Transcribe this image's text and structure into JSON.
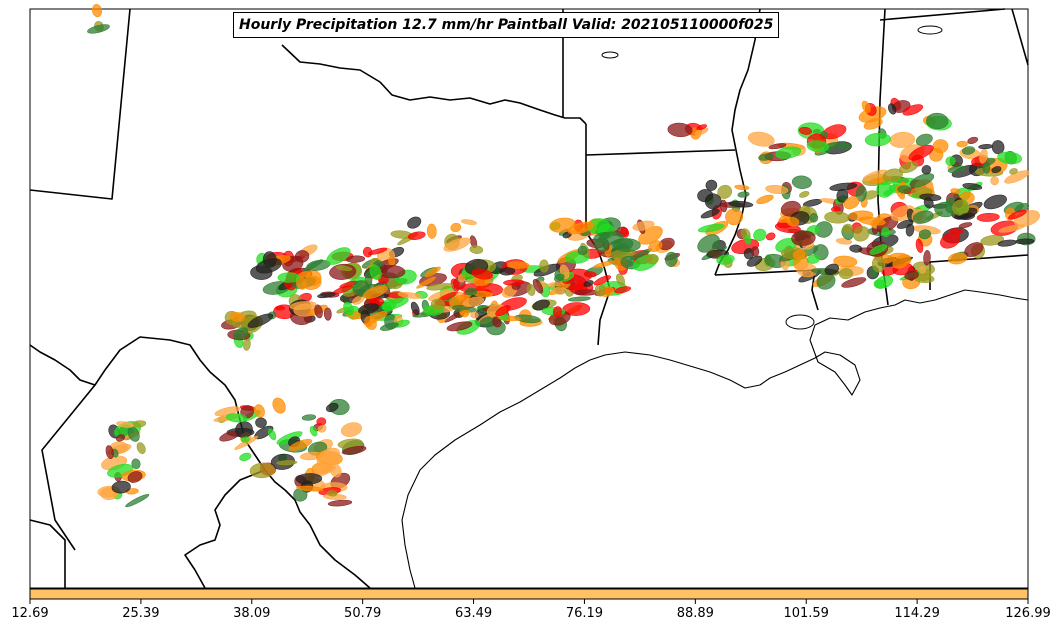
{
  "title": "Hourly Precipitation 12.7 mm/hr Paintball Valid: 202105110000f025",
  "colorbar": {
    "color": "#ffc266",
    "ticks": [
      "12.69",
      "25.39",
      "38.09",
      "50.79",
      "63.49",
      "76.19",
      "88.89",
      "101.59",
      "114.29",
      "126.99"
    ]
  },
  "colors": {
    "orange": "#ff8c00",
    "light_orange": "#ffa640",
    "red": "#ff0000",
    "dark_red": "#8b1a1a",
    "olive": "#9a9a1e",
    "green": "#22dd22",
    "dark_green": "#2e7d32",
    "black": "#222222"
  }
}
